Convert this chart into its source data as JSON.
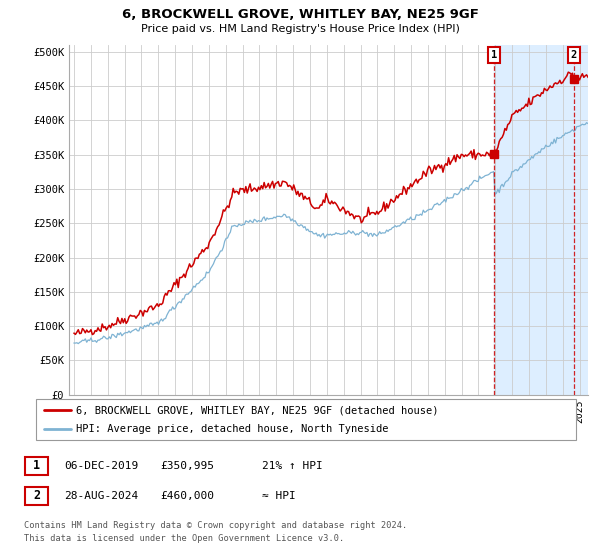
{
  "title": "6, BROCKWELL GROVE, WHITLEY BAY, NE25 9GF",
  "subtitle": "Price paid vs. HM Land Registry's House Price Index (HPI)",
  "ylabel_ticks": [
    0,
    50000,
    100000,
    150000,
    200000,
    250000,
    300000,
    350000,
    400000,
    450000,
    500000
  ],
  "ylabel_labels": [
    "£0",
    "£50K",
    "£100K",
    "£150K",
    "£200K",
    "£250K",
    "£300K",
    "£350K",
    "£400K",
    "£450K",
    "£500K"
  ],
  "xlim_start": 1994.7,
  "xlim_end": 2025.5,
  "ylim": [
    0,
    510000
  ],
  "grid_color": "#cccccc",
  "background_color": "#ffffff",
  "shade_color": "#ddeeff",
  "legend_label_red": "6, BROCKWELL GROVE, WHITLEY BAY, NE25 9GF (detached house)",
  "legend_label_blue": "HPI: Average price, detached house, North Tyneside",
  "annotation1_date": "06-DEC-2019",
  "annotation1_price": "£350,995",
  "annotation1_hpi": "21% ↑ HPI",
  "annotation2_date": "28-AUG-2024",
  "annotation2_price": "£460,000",
  "annotation2_hpi": "≈ HPI",
  "footer1": "Contains HM Land Registry data © Crown copyright and database right 2024.",
  "footer2": "This data is licensed under the Open Government Licence v3.0.",
  "red_color": "#cc0000",
  "blue_color": "#7fb3d3",
  "marker1_x": 2019.92,
  "marker2_x": 2024.66,
  "marker1_y": 350995,
  "marker2_y": 460000,
  "shade_x_start": 2019.92,
  "shade_x_end": 2025.5
}
